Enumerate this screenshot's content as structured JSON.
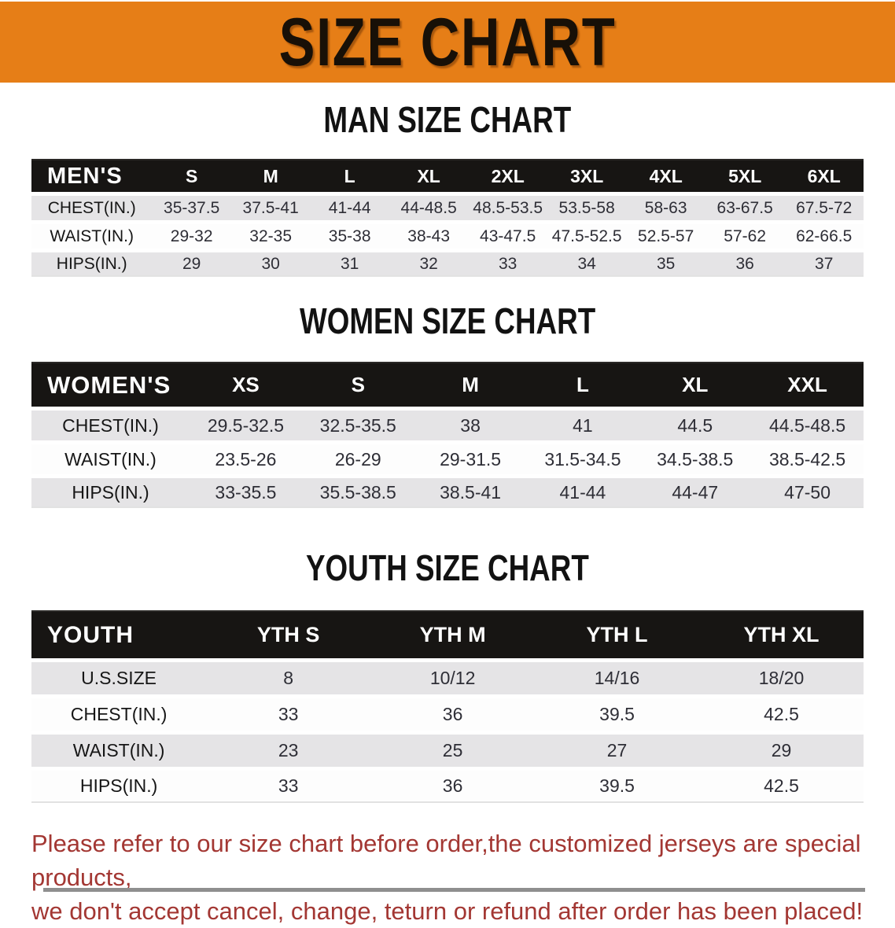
{
  "banner": {
    "title": "SIZE CHART"
  },
  "sections": [
    {
      "id": "men",
      "heading": "MAN SIZE CHART",
      "group_label": "MEN'S",
      "columns": [
        "S",
        "M",
        "L",
        "XL",
        "2XL",
        "3XL",
        "4XL",
        "5XL",
        "6XL"
      ],
      "rows": [
        {
          "label": "CHEST(IN.)",
          "values": [
            "35-37.5",
            "37.5-41",
            "41-44",
            "44-48.5",
            "48.5-53.5",
            "53.5-58",
            "58-63",
            "63-67.5",
            "67.5-72"
          ]
        },
        {
          "label": "WAIST(IN.)",
          "values": [
            "29-32",
            "32-35",
            "35-38",
            "38-43",
            "43-47.5",
            "47.5-52.5",
            "52.5-57",
            "57-62",
            "62-66.5"
          ]
        },
        {
          "label": "HIPS(IN.)",
          "values": [
            "29",
            "30",
            "31",
            "32",
            "33",
            "34",
            "35",
            "36",
            "37"
          ]
        }
      ]
    },
    {
      "id": "women",
      "heading": "WOMEN SIZE CHART",
      "group_label": "WOMEN'S",
      "columns": [
        "XS",
        "S",
        "M",
        "L",
        "XL",
        "XXL"
      ],
      "rows": [
        {
          "label": "CHEST(IN.)",
          "values": [
            "29.5-32.5",
            "32.5-35.5",
            "38",
            "41",
            "44.5",
            "44.5-48.5"
          ]
        },
        {
          "label": "WAIST(IN.)",
          "values": [
            "23.5-26",
            "26-29",
            "29-31.5",
            "31.5-34.5",
            "34.5-38.5",
            "38.5-42.5"
          ]
        },
        {
          "label": "HIPS(IN.)",
          "values": [
            "33-35.5",
            "35.5-38.5",
            "38.5-41",
            "41-44",
            "44-47",
            "47-50"
          ]
        }
      ]
    },
    {
      "id": "youth",
      "heading": "YOUTH SIZE CHART",
      "group_label": "YOUTH",
      "columns": [
        "YTH S",
        "YTH M",
        "YTH L",
        "YTH XL"
      ],
      "rows": [
        {
          "label": "U.S.SIZE",
          "values": [
            "8",
            "10/12",
            "14/16",
            "18/20"
          ]
        },
        {
          "label": "CHEST(IN.)",
          "values": [
            "33",
            "36",
            "39.5",
            "42.5"
          ]
        },
        {
          "label": "WAIST(IN.)",
          "values": [
            "23",
            "25",
            "27",
            "29"
          ]
        },
        {
          "label": "HIPS(IN.)",
          "values": [
            "33",
            "36",
            "39.5",
            "42.5"
          ]
        }
      ]
    }
  ],
  "disclaimer": {
    "line1": "Please refer to our size chart before order,the customized jerseys are special products,",
    "line2": "we don't accept cancel, change, teturn or refund after order has been placed!"
  },
  "colors": {
    "banner_orange": "#e67e17",
    "header_black": "#171513",
    "row_gray": "#e5e4e6",
    "row_white": "#fdfdfd",
    "disclaimer_red": "#a33733"
  }
}
